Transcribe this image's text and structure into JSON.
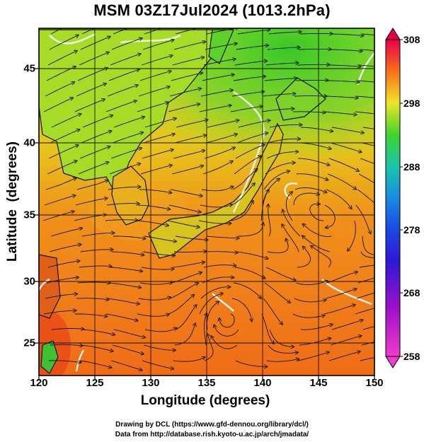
{
  "title": "MSM 03Z17Jul2024 (1013.2hPa)",
  "xlabel": "Longitude (degrees)",
  "ylabel": "Latitude  (degrees)",
  "x_ticks": [
    "120",
    "125",
    "130",
    "135",
    "140",
    "145",
    "150"
  ],
  "y_ticks": [
    "25",
    "30",
    "35",
    "40",
    "45"
  ],
  "colorbar": {
    "ticks": [
      "308",
      "298",
      "288",
      "278",
      "268",
      "258"
    ],
    "colors": [
      "#e8004a",
      "#f03a1c",
      "#f87a14",
      "#f6b81e",
      "#eef22c",
      "#b8ee2c",
      "#4ed82a",
      "#20c84a",
      "#16c0a8",
      "#1a9ce0",
      "#1c58e0",
      "#2a18d8",
      "#7a10d0",
      "#c214c0",
      "#ee3ccc"
    ]
  },
  "credits": [
    "Drawing by DCL (https://www.gfd-dennou.org/library/dcl/)",
    "Data from http://database.rish.kyoto-u.ac.jp/arch/jmadata/"
  ],
  "chart_data": {
    "type": "heatmap",
    "title": "MSM 03Z17Jul2024 (1013.2hPa)",
    "xlabel": "Longitude (degrees)",
    "ylabel": "Latitude  (degrees)",
    "xlim": [
      120,
      150
    ],
    "ylim": [
      22.4,
      47.6
    ],
    "x_ticks": [
      120,
      125,
      130,
      135,
      140,
      145,
      150
    ],
    "y_ticks": [
      25,
      30,
      35,
      40,
      45
    ],
    "colorbar_range": [
      258,
      308
    ],
    "colorbar_ticks": [
      258,
      268,
      278,
      288,
      298,
      308
    ],
    "grid": true
  }
}
